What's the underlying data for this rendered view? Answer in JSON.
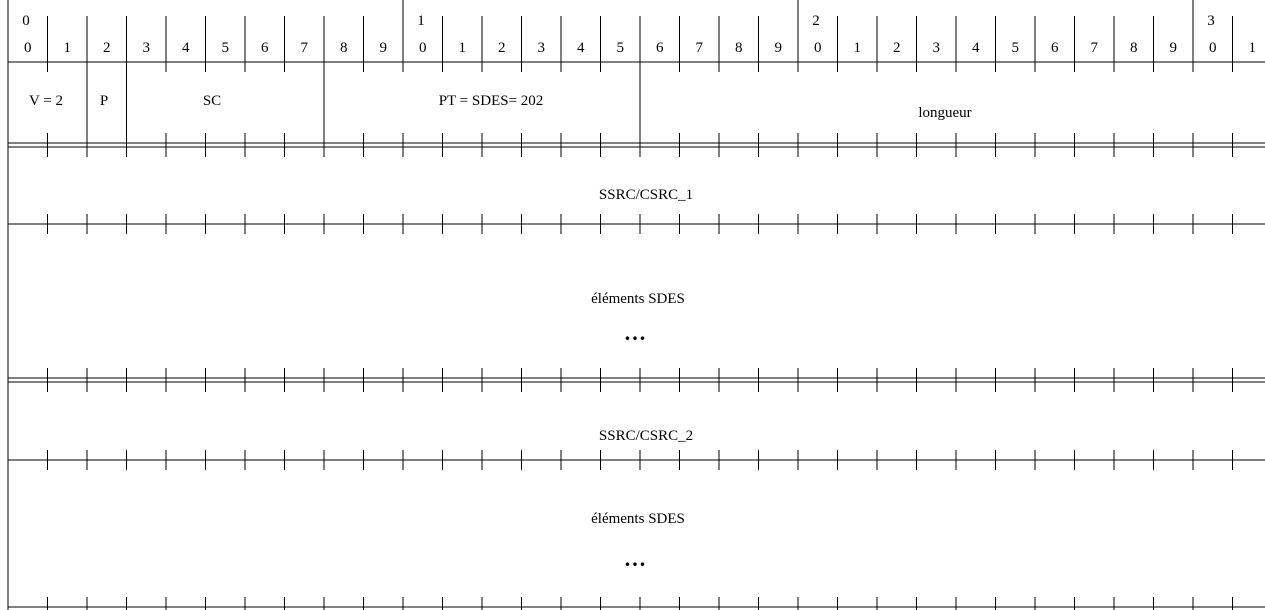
{
  "bit_header": {
    "tens": [
      "0",
      "1",
      "2",
      "3"
    ],
    "units": [
      "0",
      "1",
      "2",
      "3",
      "4",
      "5",
      "6",
      "7",
      "8",
      "9",
      "0",
      "1",
      "2",
      "3",
      "4",
      "5",
      "6",
      "7",
      "8",
      "9",
      "0",
      "1",
      "2",
      "3",
      "4",
      "5",
      "6",
      "7",
      "8",
      "9",
      "0",
      "1"
    ]
  },
  "fields": {
    "version": "V = 2",
    "padding": "P",
    "source_count": "SC",
    "packet_type": "PT = SDES= 202",
    "length": "longueur"
  },
  "chunks": [
    {
      "ssrc": "SSRC/CSRC_1",
      "items": "éléments SDES",
      "ellipsis": "..."
    },
    {
      "ssrc": "SSRC/CSRC_2",
      "items": "éléments SDES",
      "ellipsis": "..."
    }
  ]
}
